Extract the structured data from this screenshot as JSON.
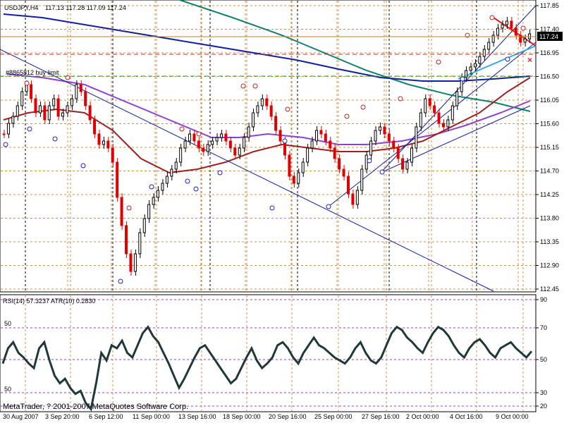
{
  "header": {
    "symbol_timeframe": "USDJPY,H4",
    "ohlc": "117.13 117.28 117.09 117.24"
  },
  "order_label": "#8865812 buy limit",
  "current_price": "117.24",
  "main_price_axis": [
    "117.85",
    "117.40",
    "116.95",
    "116.50",
    "116.05",
    "115.60",
    "115.15",
    "114.70",
    "114.25",
    "113.80",
    "113.35",
    "112.90",
    "112.45"
  ],
  "indicator": {
    "label": "RSI(14) 57.3237  ATR(10) 0.2830",
    "axis": [
      "90",
      "70",
      "50",
      "30",
      "20"
    ],
    "left_marks": [
      "50",
      "50"
    ]
  },
  "time_axis": [
    "30 Aug 2007",
    "3 Sep 20:00",
    "6 Sep 12:00",
    "11 Sep 00:00",
    "13 Sep 16:00",
    "18 Sep 00:00",
    "20 Sep 16:00",
    "25 Sep 00:00",
    "27 Sep 16:00",
    "2 Oct 00:00",
    "4 Oct 16:00",
    "9 Oct 00:00"
  ],
  "copyright": "MetaTrader, ? 2001-2007 MetaQuotes Software Corp.",
  "colors": {
    "up_candle": "#000000",
    "down_candle": "#e00000",
    "grid": "#d09040",
    "ma_blue": "#1020a0",
    "ma_teal": "#108070",
    "ma_purple": "#9040d0",
    "ma_brown": "#a02020",
    "trend_light": "#30a8e0",
    "rsi": "#203838"
  }
}
